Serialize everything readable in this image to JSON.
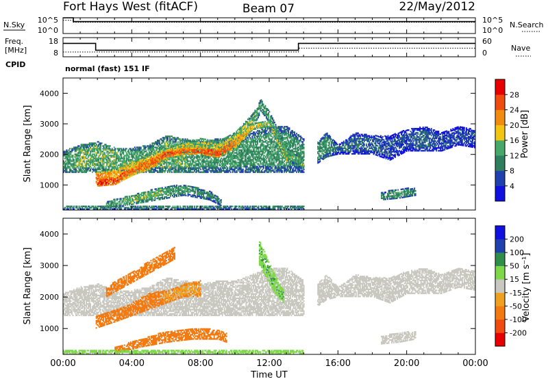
{
  "header": {
    "station": "Fort Hays West (fitACF)",
    "beam": "Beam 07",
    "date": "22/May/2012"
  },
  "top_panels": {
    "nsky_label": "N.Sky",
    "nsearch_label": "N.Search",
    "noise_ticks": [
      "10^5",
      "10^0"
    ],
    "freq_label_line1": "Freq.",
    "freq_label_line2": "[MHz]",
    "freq_ticks": [
      "18",
      "8"
    ],
    "nave_label": "Nave",
    "nave_ticks": [
      "60",
      "0"
    ],
    "cpid_label": "CPID",
    "cpid_value": "normal (fast) 151 IF"
  },
  "x_axis": {
    "label": "Time UT",
    "ticks": [
      "00:00",
      "04:00",
      "08:00",
      "12:00",
      "16:00",
      "20:00",
      "00:00"
    ]
  },
  "colors": {
    "power": [
      "#1010e0",
      "#2040b0",
      "#2f7f5e",
      "#47a86a",
      "#f2c414",
      "#f28c10",
      "#f04c10",
      "#e80000"
    ],
    "velocity": [
      "#e80000",
      "#f04c10",
      "#f27a10",
      "#f0a020",
      "#c8c8c0",
      "#7ed84a",
      "#2f8f4a",
      "#2040b0",
      "#1010e0"
    ]
  },
  "chart_data": [
    {
      "type": "line",
      "panel": "noise",
      "x": [
        0,
        0.6,
        0.6,
        24
      ],
      "series": [
        {
          "name": "N.Sky",
          "values": [
            5,
            5,
            3.8,
            3.8
          ]
        },
        {
          "name": "N.Search",
          "values": [
            4.2,
            4.2,
            3.6,
            3.6
          ]
        }
      ],
      "xlim": [
        0,
        24
      ],
      "ylim": [
        0,
        5
      ]
    },
    {
      "type": "line",
      "panel": "frequency",
      "x": [
        0,
        1.9,
        1.9,
        13.7,
        13.7,
        24
      ],
      "series": [
        {
          "name": "Freq.",
          "values": [
            15,
            15,
            11.4,
            11.4,
            15,
            15
          ]
        },
        {
          "name": "Nave",
          "values": [
            15,
            15,
            15,
            15,
            27,
            27
          ]
        }
      ],
      "ylabel": "[MHz]",
      "ylim": [
        8,
        18
      ],
      "ylim_right": [
        0,
        60
      ]
    },
    {
      "type": "heatmap",
      "panel": "power",
      "ylabel": "Slant Range [km]",
      "xlabel": "Time UT",
      "xlim": [
        0,
        24
      ],
      "ylim": [
        180,
        4500
      ],
      "yticks": [
        1000,
        2000,
        3000,
        4000
      ],
      "colorbar": {
        "label": "Power [dB]",
        "ticks": [
          4,
          8,
          12,
          16,
          20,
          24,
          28
        ],
        "range": [
          0,
          32
        ]
      },
      "bands": [
        {
          "t": [
            0.0,
            1.0,
            2.0,
            3.0,
            4.0,
            5.0,
            6.0,
            7.0,
            8.0,
            9.0,
            10.0,
            11.0,
            11.5,
            12.0,
            13.0,
            14.0
          ],
          "lo": [
            1400,
            1400,
            1400,
            1400,
            1400,
            1400,
            1400,
            1400,
            1400,
            1400,
            1400,
            1400,
            1400,
            1400,
            1400,
            1400
          ],
          "hi": [
            2100,
            2300,
            2400,
            2200,
            2200,
            2300,
            2600,
            2500,
            2400,
            2500,
            2500,
            2700,
            2800,
            2900,
            2900,
            2500
          ],
          "v": [
            12,
            14,
            14,
            14,
            12,
            12,
            14,
            14,
            12,
            12,
            12,
            12,
            12,
            12,
            12,
            10
          ]
        },
        {
          "t": [
            1.9,
            3.0,
            4.0,
            5.0,
            6.0,
            7.0,
            8.0,
            9.0,
            10.0,
            11.0,
            11.5,
            12.0,
            13.0,
            14.0
          ],
          "lo": [
            1000,
            1100,
            1300,
            1500,
            1800,
            2000,
            2000,
            1900,
            2200,
            2800,
            3400,
            3000,
            1800,
            1500
          ],
          "hi": [
            1400,
            1500,
            1800,
            2000,
            2200,
            2400,
            2500,
            2400,
            2700,
            3300,
            3800,
            3400,
            2200,
            1800
          ],
          "v": [
            24,
            20,
            18,
            18,
            18,
            16,
            16,
            16,
            16,
            14,
            12,
            12,
            14,
            14
          ]
        },
        {
          "t": [
            2.0,
            3.0,
            4.0,
            5.0,
            6.0,
            7.0,
            8.0,
            9.0,
            10.0,
            11.0,
            12.0,
            13.0
          ],
          "lo": [
            950,
            1000,
            1300,
            1500,
            1900,
            2000,
            2000,
            1900,
            2200,
            2800,
            2900,
            1700
          ],
          "hi": [
            1150,
            1250,
            1600,
            1850,
            2100,
            2200,
            2200,
            2150,
            2500,
            3000,
            3100,
            1900
          ],
          "v": [
            28,
            26,
            24,
            24,
            26,
            24,
            26,
            26,
            22,
            18,
            16,
            18
          ]
        },
        {
          "t": [
            2.5,
            4.0,
            5.5,
            7.0,
            8.5,
            9.2
          ],
          "lo": [
            250,
            350,
            500,
            650,
            500,
            300
          ],
          "hi": [
            450,
            650,
            900,
            1000,
            800,
            500
          ],
          "v": [
            12,
            14,
            14,
            12,
            10,
            10
          ]
        },
        {
          "t": [
            14.8,
            15.3,
            16.0,
            17.0,
            18.0,
            19.0,
            20.0,
            21.0,
            22.0,
            23.0,
            24.0
          ],
          "lo": [
            1700,
            1900,
            2000,
            2000,
            2000,
            1800,
            2100,
            2100,
            2100,
            2300,
            2200
          ],
          "hi": [
            2400,
            2700,
            2300,
            2700,
            2600,
            2600,
            2800,
            2900,
            2700,
            2900,
            2800
          ],
          "v": [
            10,
            12,
            8,
            8,
            8,
            6,
            6,
            8,
            6,
            6,
            6
          ]
        },
        {
          "t": [
            18.5,
            19.5,
            20.5
          ],
          "lo": [
            500,
            550,
            650
          ],
          "hi": [
            750,
            850,
            900
          ],
          "v": [
            10,
            12,
            10
          ]
        },
        {
          "t": [
            0.0,
            6.0,
            12.0,
            14.0
          ],
          "lo": [
            190,
            190,
            190,
            190
          ],
          "hi": [
            310,
            320,
            320,
            300
          ],
          "v": [
            10,
            10,
            10,
            10
          ]
        }
      ]
    },
    {
      "type": "heatmap",
      "panel": "velocity",
      "ylabel": "Slant Range [km]",
      "xlabel": "Time UT",
      "xlim": [
        0,
        24
      ],
      "ylim": [
        180,
        4500
      ],
      "yticks": [
        1000,
        2000,
        3000,
        4000
      ],
      "colorbar": {
        "label": "Velocity [m s⁻¹]",
        "ticks": [
          200,
          100,
          50,
          15,
          -15,
          -50,
          -100,
          -200
        ]
      },
      "bands": [
        {
          "t": [
            0.0,
            1.0,
            2.0,
            3.0,
            4.0,
            5.0,
            6.0,
            7.0,
            8.0,
            9.0,
            10.0,
            11.0,
            11.5,
            12.0,
            13.0,
            14.0
          ],
          "lo": [
            1400,
            1400,
            1400,
            1400,
            1400,
            1400,
            1400,
            1400,
            1400,
            1400,
            1400,
            1400,
            1400,
            1400,
            1400,
            1400
          ],
          "hi": [
            2100,
            2300,
            2400,
            2200,
            2200,
            2300,
            2600,
            2500,
            2400,
            2500,
            2500,
            2700,
            2800,
            2900,
            2900,
            2500
          ],
          "v": [
            0,
            0,
            0,
            0,
            0,
            0,
            0,
            0,
            0,
            0,
            0,
            0,
            0,
            0,
            0,
            0
          ]
        },
        {
          "t": [
            1.9,
            3.0,
            4.0,
            5.0,
            6.0,
            7.0,
            8.0
          ],
          "lo": [
            1000,
            1200,
            1400,
            1600,
            1800,
            2000,
            2000
          ],
          "hi": [
            1400,
            1600,
            1800,
            2100,
            2200,
            2400,
            2500
          ],
          "v": [
            -40,
            -40,
            -40,
            -40,
            -30,
            -30,
            -30
          ]
        },
        {
          "t": [
            2.5,
            3.5,
            4.5,
            5.5,
            6.5
          ],
          "lo": [
            2000,
            2300,
            2600,
            2900,
            3200
          ],
          "hi": [
            2300,
            2650,
            2950,
            3300,
            3600
          ],
          "v": [
            -40,
            -40,
            -40,
            -40,
            -40
          ]
        },
        {
          "t": [
            11.4,
            11.8,
            12.3,
            12.8
          ],
          "lo": [
            3000,
            2600,
            2100,
            1800
          ],
          "hi": [
            3800,
            3300,
            2700,
            2200
          ],
          "v": [
            30,
            30,
            30,
            30
          ]
        },
        {
          "t": [
            3.0,
            4.5,
            6.0,
            7.5,
            9.0,
            9.5
          ],
          "lo": [
            200,
            400,
            550,
            650,
            650,
            550
          ],
          "hi": [
            400,
            650,
            900,
            1000,
            950,
            850
          ],
          "v": [
            -40,
            -40,
            -40,
            -40,
            -60,
            -60
          ]
        },
        {
          "t": [
            14.8,
            15.3,
            16.0,
            17.0,
            18.0,
            19.0,
            20.0,
            21.0,
            22.0,
            23.0,
            24.0
          ],
          "lo": [
            1700,
            1900,
            2000,
            2000,
            2000,
            1800,
            2100,
            2100,
            2100,
            2300,
            2200
          ],
          "hi": [
            2400,
            2700,
            2300,
            2700,
            2600,
            2600,
            2800,
            2900,
            2700,
            2900,
            2800
          ],
          "v": [
            0,
            0,
            0,
            0,
            0,
            0,
            0,
            0,
            0,
            0,
            0
          ]
        },
        {
          "t": [
            18.5,
            19.5,
            20.5
          ],
          "lo": [
            500,
            550,
            650
          ],
          "hi": [
            750,
            850,
            900
          ],
          "v": [
            0,
            0,
            0
          ]
        },
        {
          "t": [
            0.0,
            6.0,
            12.0,
            14.0
          ],
          "lo": [
            190,
            190,
            190,
            190
          ],
          "hi": [
            310,
            320,
            320,
            300
          ],
          "v": [
            20,
            20,
            20,
            20
          ]
        }
      ]
    }
  ]
}
